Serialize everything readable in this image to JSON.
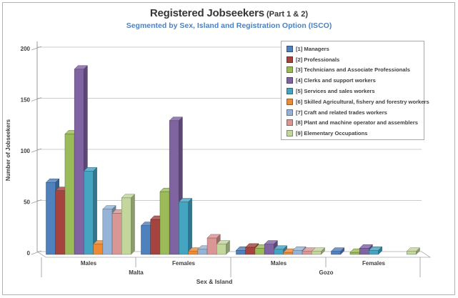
{
  "header": {
    "title": "Registered Jobseekers",
    "part": " (Part 1 & 2)",
    "subtitle": "Segmented by Sex, Island and Registration Option (ISCO)",
    "subtitle_color": "#4F81BD"
  },
  "chart_data": {
    "type": "bar",
    "style": "3d-clustered-column",
    "title": "Registered Jobseekers (Part 1 & 2)",
    "subtitle": "Segmented by Sex, Island and Registration Option (ISCO)",
    "xlabel": "Sex & Island",
    "ylabel": "Number of Jobseekers",
    "ylim": [
      0,
      200
    ],
    "yticks": [
      0,
      50,
      100,
      150,
      200
    ],
    "grid": true,
    "legend_position": "top-right",
    "categories": [
      {
        "sex": "Males",
        "island": "Malta"
      },
      {
        "sex": "Females",
        "island": "Malta"
      },
      {
        "sex": "Males",
        "island": "Gozo"
      },
      {
        "sex": "Females",
        "island": "Gozo"
      }
    ],
    "island_spans": [
      {
        "label": "Malta",
        "from": 0,
        "to": 1
      },
      {
        "label": "Gozo",
        "from": 2,
        "to": 3
      }
    ],
    "series": [
      {
        "name": "[1] Managers",
        "color": "#4F81BD",
        "values": [
          70,
          28,
          4,
          3
        ]
      },
      {
        "name": "[2] Professionals",
        "color": "#A5443F",
        "values": [
          62,
          34,
          7,
          0
        ]
      },
      {
        "name": "[3] Technicians and Associate Professionals",
        "color": "#9BBB59",
        "values": [
          117,
          61,
          6,
          2
        ]
      },
      {
        "name": "[4] Clerks and support workers",
        "color": "#8064A2",
        "values": [
          180,
          130,
          10,
          6
        ]
      },
      {
        "name": "[5] Services and sales workers",
        "color": "#44A4C2",
        "values": [
          81,
          51,
          5,
          4
        ]
      },
      {
        "name": "[6] Skilled Agricultural, fishery and forestry workers",
        "color": "#ED8A36",
        "values": [
          10,
          3,
          2,
          0
        ]
      },
      {
        "name": "[7] Craft and related trades workers",
        "color": "#95B3D7",
        "values": [
          44,
          5,
          4,
          0
        ]
      },
      {
        "name": "[8] Plant and machine operator and assemblers",
        "color": "#D99694",
        "values": [
          40,
          16,
          3,
          0
        ]
      },
      {
        "name": "[9] Elementary Occupations",
        "color": "#C3D69B",
        "values": [
          55,
          10,
          3,
          3
        ]
      }
    ]
  }
}
